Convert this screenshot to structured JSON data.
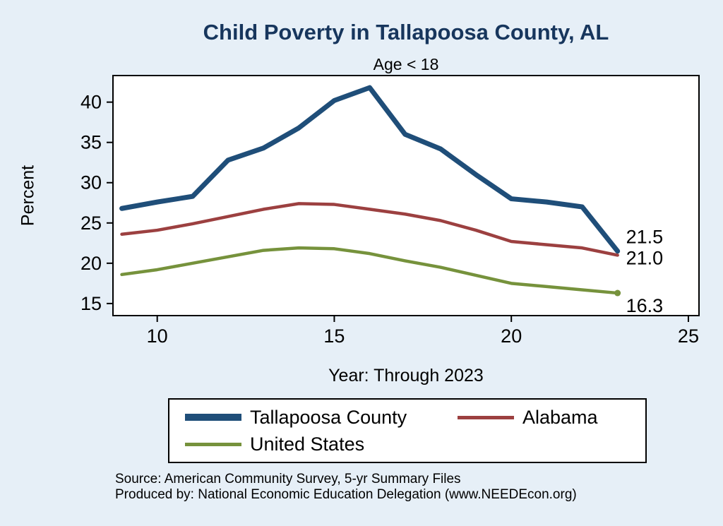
{
  "title": "Child Poverty in Tallapoosa County, AL",
  "subtitle": "Age < 18",
  "axes": {
    "ylabel": "Percent",
    "xlabel": "Year: Through 2023"
  },
  "notes": {
    "source": "Source: American Community Survey, 5-yr Summary Files",
    "produced_by": "Produced by: National Economic Education Delegation (www.NEEDEcon.org)"
  },
  "colors": {
    "background": "#e6eff7",
    "plot_background": "#ffffff",
    "title": "#17365d",
    "axis": "#000000",
    "tallapoosa": "#1f4e79",
    "alabama": "#9c4040",
    "united_states": "#76923c"
  },
  "chart_data": {
    "type": "line",
    "title": "Child Poverty in Tallapoosa County, AL",
    "subtitle": "Age < 18",
    "xlabel": "Year: Through 2023",
    "ylabel": "Percent",
    "grid": false,
    "legend_position": "bottom",
    "x": [
      9,
      10,
      11,
      12,
      13,
      14,
      15,
      16,
      17,
      18,
      19,
      20,
      21,
      22,
      23
    ],
    "xticks": [
      10,
      15,
      20,
      25
    ],
    "yticks": [
      15,
      20,
      25,
      30,
      35,
      40
    ],
    "xlim": [
      8.75,
      25.3
    ],
    "ylim": [
      13.5,
      43.3
    ],
    "series": [
      {
        "name": "Tallapoosa County",
        "color": "#1f4e79",
        "values": [
          26.8,
          27.6,
          28.3,
          32.8,
          34.3,
          36.8,
          40.2,
          41.8,
          36.0,
          34.2,
          31.0,
          28.0,
          27.6,
          27.0,
          21.5
        ],
        "end_label": "21.5"
      },
      {
        "name": "Alabama",
        "color": "#9c4040",
        "values": [
          23.6,
          24.1,
          24.9,
          25.8,
          26.7,
          27.4,
          27.3,
          26.7,
          26.1,
          25.3,
          24.1,
          22.7,
          22.3,
          21.9,
          21.0
        ],
        "end_label": "21.0"
      },
      {
        "name": "United States",
        "color": "#76923c",
        "values": [
          18.6,
          19.2,
          20.0,
          20.8,
          21.6,
          21.9,
          21.8,
          21.2,
          20.3,
          19.5,
          18.5,
          17.5,
          17.1,
          16.7,
          16.3
        ],
        "end_label": "16.3",
        "end_dot": true
      }
    ]
  }
}
